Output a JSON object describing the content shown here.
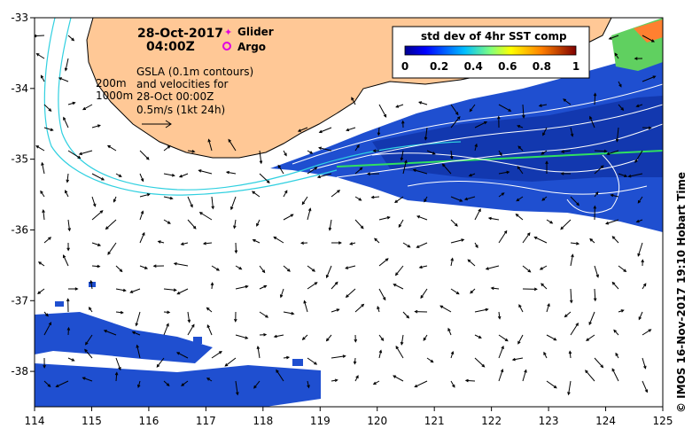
{
  "map": {
    "date": "28-Oct-2017",
    "time": "04:00Z",
    "legend": {
      "glider_label": "Glider",
      "argo_label": "Argo",
      "glider_color": "#e000e0",
      "argo_color": "#e000e0"
    },
    "isobaths": {
      "label_200": "200m",
      "label_1000": "1000m",
      "color": "#30d0e0"
    },
    "gsla_note": {
      "line1": "GSLA (0.1m contours)",
      "line2": "and velocities for",
      "line3": "28-Oct 00:00Z",
      "line4": "0.5m/s (1kt 24h)"
    },
    "colorbar": {
      "title": "std dev of 4hr SST comp",
      "ticks": [
        "0",
        "0.2",
        "0.4",
        "0.6",
        "0.8",
        "1"
      ],
      "colors": [
        "#00008f",
        "#0000ff",
        "#007fff",
        "#00ffff",
        "#7fff7f",
        "#ffff00",
        "#ff7f00",
        "#ff0000",
        "#7f0000"
      ]
    },
    "axes": {
      "x_ticks": [
        "114",
        "115",
        "116",
        "117",
        "118",
        "119",
        "120",
        "121",
        "122",
        "123",
        "124",
        "125"
      ],
      "y_ticks": [
        "-33",
        "-34",
        "-35",
        "-36",
        "-37",
        "-38"
      ],
      "lon_range": [
        114,
        125
      ],
      "lat_range": [
        -33,
        -38.5
      ]
    },
    "land_color": "#ffc896",
    "sst_color": "#1f4fd0",
    "credit": "© IMOS 16-Nov-2017 19:10 Hobart Time"
  }
}
